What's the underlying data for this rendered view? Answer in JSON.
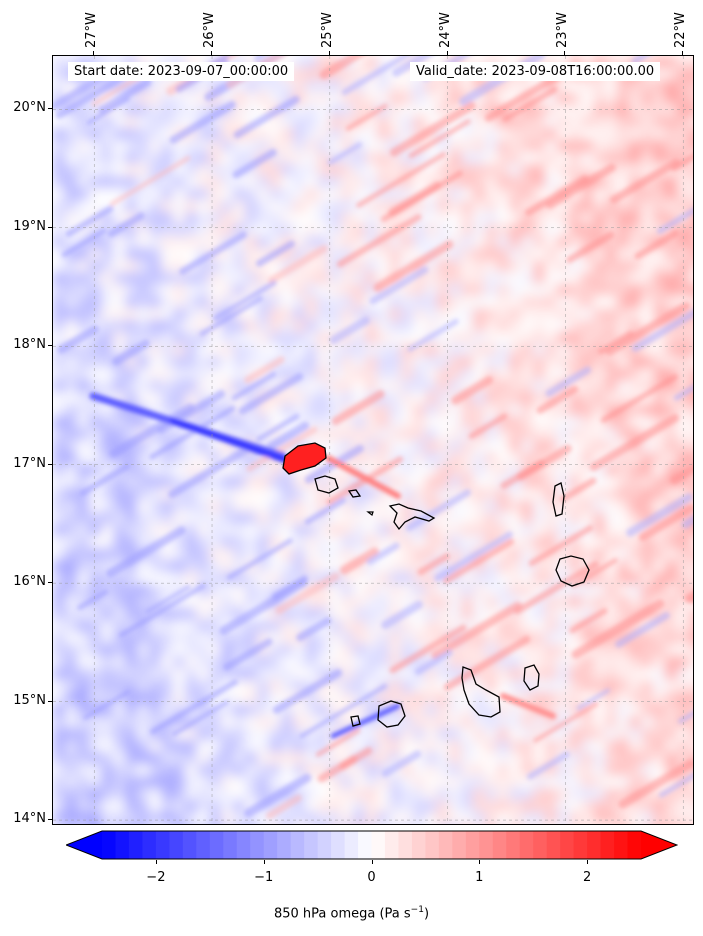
{
  "header": {
    "start_date": "Start date: 2023-09-07_00:00:00",
    "valid_date": "Valid_date: 2023-09-08T16:00:00.00"
  },
  "map": {
    "extent": {
      "lon_min": -27.35,
      "lon_max": -21.9,
      "lat_min": 13.95,
      "lat_max": 20.45
    },
    "lat_ticks": [
      {
        "value": 14,
        "label": "14°N"
      },
      {
        "value": 15,
        "label": "15°N"
      },
      {
        "value": 16,
        "label": "16°N"
      },
      {
        "value": 17,
        "label": "17°N"
      },
      {
        "value": 18,
        "label": "18°N"
      },
      {
        "value": 19,
        "label": "19°N"
      },
      {
        "value": 20,
        "label": "20°N"
      }
    ],
    "lon_ticks": [
      {
        "value": -27,
        "label": "27°W"
      },
      {
        "value": -26,
        "label": "26°W"
      },
      {
        "value": -25,
        "label": "25°W"
      },
      {
        "value": -24,
        "label": "24°W"
      },
      {
        "value": -23,
        "label": "23°W"
      },
      {
        "value": -22,
        "label": "22°W"
      }
    ],
    "gridlines": "dashed",
    "islands": [
      "Santo Antão",
      "São Vicente",
      "Santa Luzia",
      "São Nicolau",
      "Sal",
      "Boa Vista",
      "Brava",
      "Fogo",
      "Santiago",
      "Maio"
    ]
  },
  "colorbar": {
    "label_prefix": "850 hPa omega (Pa s",
    "label_sup": "−1",
    "label_suffix": ")",
    "min": -2.5,
    "max": 2.5,
    "ticks": [
      {
        "value": -2,
        "label": "−2"
      },
      {
        "value": -1,
        "label": "−1"
      },
      {
        "value": 0,
        "label": "0"
      },
      {
        "value": 1,
        "label": "1"
      },
      {
        "value": 2,
        "label": "2"
      }
    ],
    "colormap": "bwr",
    "color_low": "#0000ff",
    "color_mid": "#ffffff",
    "color_high": "#ff0000"
  }
}
